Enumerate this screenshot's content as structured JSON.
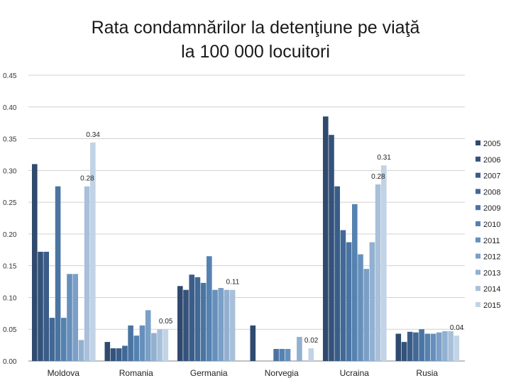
{
  "chart_data": {
    "type": "bar",
    "title_lines": [
      "Rata condamnărilor la detenţiune pe viaţă",
      "la 100 000 locuitori"
    ],
    "xlabel": "",
    "ylabel": "",
    "ylim": [
      0,
      0.45
    ],
    "yticks": [
      "0.00",
      "0.05",
      "0.10",
      "0.15",
      "0.20",
      "0.25",
      "0.30",
      "0.35",
      "0.40",
      "0.45"
    ],
    "grid": true,
    "legend_position": "right",
    "categories": [
      "Moldova",
      "Romania",
      "Germania",
      "Norvegia",
      "Ucraina",
      "Rusia"
    ],
    "series": [
      {
        "name": "2005",
        "color": "#2f4a6e",
        "values": [
          0.31,
          0.03,
          0.118,
          0.056,
          0.385,
          0.043
        ]
      },
      {
        "name": "2006",
        "color": "#34527a",
        "values": [
          0.172,
          0.02,
          0.112,
          0,
          0.356,
          0.03
        ]
      },
      {
        "name": "2007",
        "color": "#3a5c88",
        "values": [
          0.172,
          0.02,
          0.136,
          0,
          0.275,
          0.046
        ]
      },
      {
        "name": "2008",
        "color": "#426895",
        "values": [
          0.068,
          0.024,
          0.132,
          0,
          0.206,
          0.045
        ]
      },
      {
        "name": "2009",
        "color": "#4a74a2",
        "values": [
          0.275,
          0.056,
          0.123,
          0.019,
          0.187,
          0.05
        ]
      },
      {
        "name": "2010",
        "color": "#5582b0",
        "values": [
          0.068,
          0.04,
          0.165,
          0.019,
          0.247,
          0.043
        ]
      },
      {
        "name": "2011",
        "color": "#6690bb",
        "values": [
          0.137,
          0.056,
          0.112,
          0.019,
          0.168,
          0.043
        ]
      },
      {
        "name": "2012",
        "color": "#7b9fc6",
        "values": [
          0.137,
          0.08,
          0.115,
          0,
          0.145,
          0.045
        ]
      },
      {
        "name": "2013",
        "color": "#92b0d0",
        "values": [
          0.033,
          0.044,
          0.112,
          0.038,
          0.187,
          0.047
        ]
      },
      {
        "name": "2014",
        "color": "#a9c0da",
        "values": [
          0.275,
          0.05,
          0.112,
          0,
          0.278,
          0.047
        ]
      },
      {
        "name": "2015",
        "color": "#c2d3e6",
        "values": [
          0.344,
          0.05,
          0,
          0.02,
          0.308,
          0.04
        ]
      }
    ],
    "data_labels": [
      {
        "category": "Moldova",
        "series": "2014",
        "text": "0.28"
      },
      {
        "category": "Moldova",
        "series": "2015",
        "text": "0.34"
      },
      {
        "category": "Romania",
        "series": "2015",
        "text": "0.05"
      },
      {
        "category": "Germania",
        "series": "2014",
        "text": "0.11"
      },
      {
        "category": "Norvegia",
        "series": "2015",
        "text": "0.02"
      },
      {
        "category": "Ucraina",
        "series": "2014",
        "text": "0.28"
      },
      {
        "category": "Ucraina",
        "series": "2015",
        "text": "0.31"
      },
      {
        "category": "Rusia",
        "series": "2015",
        "text": "0.04"
      }
    ]
  }
}
